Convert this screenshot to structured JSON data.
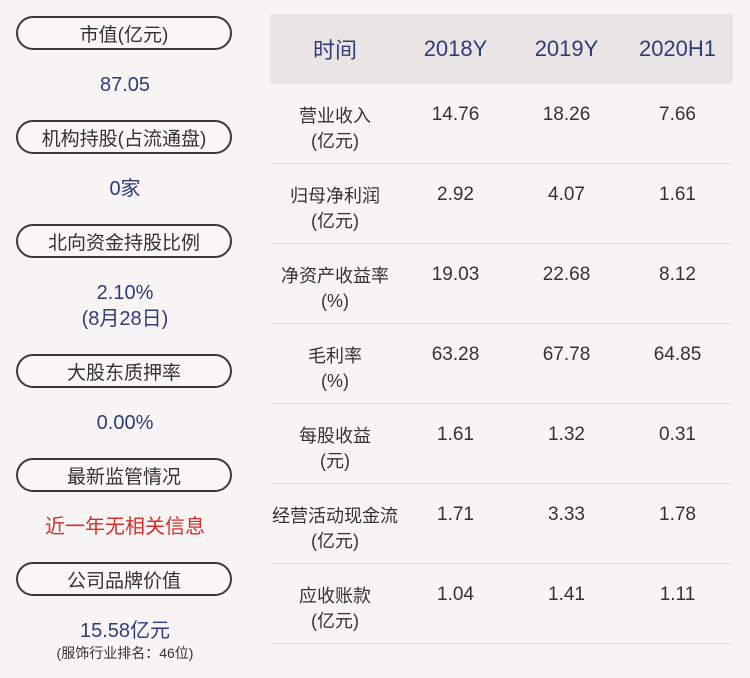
{
  "left": {
    "items": [
      {
        "label": "市值(亿元)",
        "value": "87.05"
      },
      {
        "label": "机构持股(占流通盘)",
        "value": "0家"
      },
      {
        "label": "北向资金持股比例",
        "value": "2.10%",
        "value2": "(8月28日)"
      },
      {
        "label": "大股东质押率",
        "value": "0.00%"
      },
      {
        "label": "最新监管情况",
        "value": "近一年无相关信息"
      },
      {
        "label": "公司品牌价值",
        "value": "15.58亿元",
        "note": "(服饰行业排名：46位)"
      }
    ]
  },
  "table": {
    "headers": [
      "时间",
      "2018Y",
      "2019Y",
      "2020H1"
    ],
    "rows": [
      {
        "label1": "营业收入",
        "label2": "(亿元)",
        "values": [
          "14.76",
          "18.26",
          "7.66"
        ]
      },
      {
        "label1": "归母净利润",
        "label2": "(亿元)",
        "values": [
          "2.92",
          "4.07",
          "1.61"
        ]
      },
      {
        "label1": "净资产收益率",
        "label2": "(%)",
        "values": [
          "19.03",
          "22.68",
          "8.12"
        ]
      },
      {
        "label1": "毛利率",
        "label2": "(%)",
        "values": [
          "63.28",
          "67.78",
          "64.85"
        ]
      },
      {
        "label1": "每股收益",
        "label2": "(元)",
        "values": [
          "1.61",
          "1.32",
          "0.31"
        ]
      },
      {
        "label1": "经营活动现金流",
        "label2": "(亿元)",
        "values": [
          "1.71",
          "3.33",
          "1.78"
        ]
      },
      {
        "label1": "应收账款",
        "label2": "(亿元)",
        "values": [
          "1.04",
          "1.41",
          "1.11"
        ]
      }
    ]
  }
}
